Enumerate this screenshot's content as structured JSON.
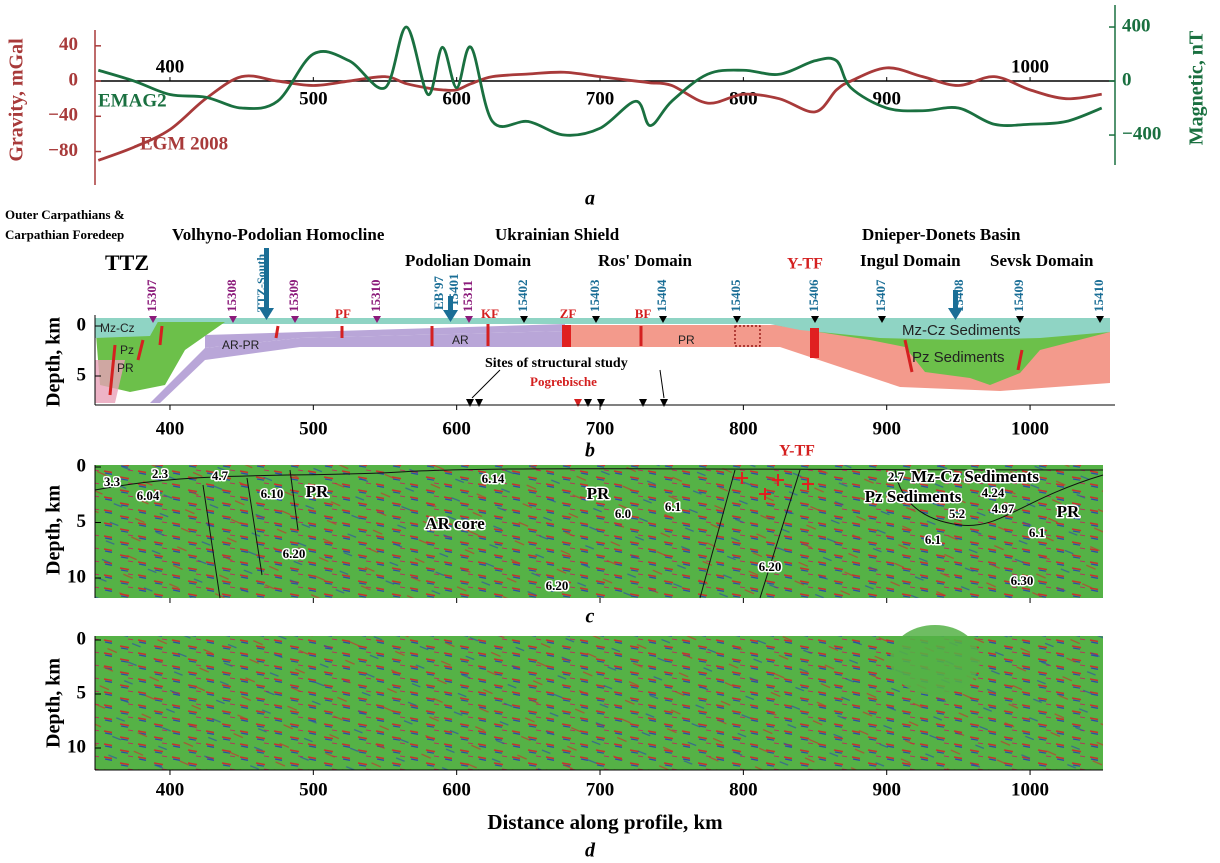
{
  "chart_data": {
    "type": "line",
    "panel_label": "a",
    "ylabel": "Gravity, mGal",
    "y2label": "Magnetic, nT",
    "x": [
      350,
      375,
      400,
      425,
      450,
      475,
      500,
      525,
      550,
      565,
      580,
      590,
      600,
      610,
      625,
      650,
      675,
      700,
      725,
      735,
      750,
      775,
      800,
      825,
      850,
      865,
      875,
      900,
      925,
      950,
      975,
      1000,
      1025,
      1050
    ],
    "series": [
      {
        "name": "EGM 2008",
        "color": "#a83a3a",
        "values": [
          -90,
          -75,
          -55,
          -20,
          5,
          0,
          -5,
          0,
          5,
          -3,
          -8,
          -10,
          -10,
          -3,
          5,
          8,
          10,
          5,
          0,
          -2,
          -5,
          -25,
          -15,
          -20,
          -35,
          -10,
          0,
          15,
          5,
          -5,
          5,
          -10,
          -20,
          -15
        ]
      },
      {
        "name": "EMAG2",
        "color": "#1a7040",
        "axis": "y2",
        "values": [
          80,
          0,
          -100,
          -120,
          -200,
          -150,
          200,
          150,
          -50,
          400,
          -100,
          250,
          -50,
          250,
          -300,
          -300,
          -400,
          -350,
          -150,
          -330,
          -150,
          50,
          80,
          50,
          150,
          150,
          -50,
          -200,
          -220,
          -200,
          -320,
          -320,
          -300,
          -200
        ]
      }
    ],
    "xlim": [
      350,
      1055
    ],
    "xticks": [
      400,
      500,
      600,
      700,
      800,
      900,
      1000
    ],
    "ylim": [
      -118,
      75
    ],
    "yticks": [
      {
        "value": -80,
        "label": "−80"
      },
      {
        "value": -40,
        "label": "−40"
      },
      0,
      40
    ],
    "y2lim": [
      -770,
      489
    ],
    "y2ticks": [
      {
        "value": -400,
        "label": "−400"
      },
      0,
      400
    ]
  },
  "panel_b": {
    "label": "b",
    "ylabel": "Depth, km",
    "yticks": [
      0,
      5
    ],
    "xticks": [
      400,
      500,
      600,
      700,
      800,
      900,
      1000
    ],
    "regions": [
      "Outer Carpathians &",
      "Carpathian Foredeep",
      "Volhyno-Podolian Homocline",
      "Ukrainian Shield",
      "Dnieper-Donets Basin"
    ],
    "domains": [
      "Podolian Domain",
      "Ros' Domain",
      "Ingul Domain",
      "Sevsk Domain"
    ],
    "ttz": "TTZ",
    "ttz_south": "TTZ-South",
    "eb97": "EB'97",
    "ytf": "Y-TF",
    "stations": [
      "15307",
      "15308",
      "15309",
      "15310",
      "15311",
      "15401",
      "15402",
      "15403",
      "15404",
      "15405",
      "15406",
      "15407",
      "15408",
      "15409",
      "15410"
    ],
    "faults": [
      "PF",
      "KF",
      "ZF",
      "BF"
    ],
    "units": [
      "Mz-Cz",
      "Pz",
      "PR",
      "AR-PR",
      "AR",
      "PR",
      "Mz-Cz Sediments",
      "Pz Sediments"
    ],
    "sites_label": "Sites of structural study",
    "pogrebische": "Pogrebische"
  },
  "panel_c": {
    "label": "c",
    "ylabel": "Depth, km",
    "yticks": [
      0,
      5,
      10
    ],
    "ytf": "Y-TF",
    "annotations": [
      "3.3",
      "2.3",
      "4.7",
      "6.04",
      "6.10",
      "PR",
      "6.14",
      "PR",
      "6.0",
      "6.1",
      "AR core",
      "6.20",
      "6.20",
      "2.7",
      "Mz-Cz Sediments",
      "Pz Sediments",
      "4.24",
      "5.2",
      "4.97",
      "PR",
      "6.1",
      "6.1",
      "6.20",
      "6.30"
    ]
  },
  "panel_d": {
    "label": "d",
    "ylabel": "Depth, km",
    "yticks": [
      0,
      5,
      10
    ],
    "xticks": [
      400,
      500,
      600,
      700,
      800,
      900,
      1000
    ],
    "xlabel": "Distance along profile, km"
  }
}
